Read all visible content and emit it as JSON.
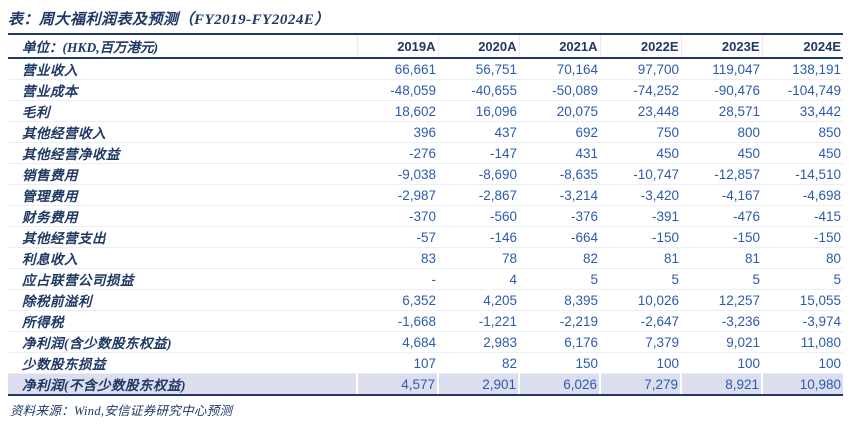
{
  "title": "表：周大福利润表及预测（FY2019-FY2024E）",
  "table": {
    "unit_label": "单位：(HKD,百万港元)",
    "columns": [
      "2019A",
      "2020A",
      "2021A",
      "2022E",
      "2023E",
      "2024E"
    ],
    "rows": [
      {
        "label": "营业收入",
        "values": [
          "66,661",
          "56,751",
          "70,164",
          "97,700",
          "119,047",
          "138,191"
        ],
        "highlight": false
      },
      {
        "label": "营业成本",
        "values": [
          "-48,059",
          "-40,655",
          "-50,089",
          "-74,252",
          "-90,476",
          "-104,749"
        ],
        "highlight": false
      },
      {
        "label": "毛利",
        "values": [
          "18,602",
          "16,096",
          "20,075",
          "23,448",
          "28,571",
          "33,442"
        ],
        "highlight": false
      },
      {
        "label": "其他经营收入",
        "values": [
          "396",
          "437",
          "692",
          "750",
          "800",
          "850"
        ],
        "highlight": false
      },
      {
        "label": "其他经营净收益",
        "values": [
          "-276",
          "-147",
          "431",
          "450",
          "450",
          "450"
        ],
        "highlight": false
      },
      {
        "label": "销售费用",
        "values": [
          "-9,038",
          "-8,690",
          "-8,635",
          "-10,747",
          "-12,857",
          "-14,510"
        ],
        "highlight": false
      },
      {
        "label": "管理费用",
        "values": [
          "-2,987",
          "-2,867",
          "-3,214",
          "-3,420",
          "-4,167",
          "-4,698"
        ],
        "highlight": false
      },
      {
        "label": "财务费用",
        "values": [
          "-370",
          "-560",
          "-376",
          "-391",
          "-476",
          "-415"
        ],
        "highlight": false
      },
      {
        "label": "其他经营支出",
        "values": [
          "-57",
          "-146",
          "-664",
          "-150",
          "-150",
          "-150"
        ],
        "highlight": false
      },
      {
        "label": "利息收入",
        "values": [
          "83",
          "78",
          "82",
          "81",
          "81",
          "80"
        ],
        "highlight": false
      },
      {
        "label": "应占联营公司损益",
        "values": [
          "-",
          "4",
          "5",
          "5",
          "5",
          "5"
        ],
        "highlight": false
      },
      {
        "label": "除税前溢利",
        "values": [
          "6,352",
          "4,205",
          "8,395",
          "10,026",
          "12,257",
          "15,055"
        ],
        "highlight": false
      },
      {
        "label": "所得税",
        "values": [
          "-1,668",
          "-1,221",
          "-2,219",
          "-2,647",
          "-3,236",
          "-3,974"
        ],
        "highlight": false
      },
      {
        "label": "净利润(含少数股东权益)",
        "values": [
          "4,684",
          "2,983",
          "6,176",
          "7,379",
          "9,021",
          "11,080"
        ],
        "highlight": false
      },
      {
        "label": "少数股东损益",
        "values": [
          "107",
          "82",
          "150",
          "100",
          "100",
          "100"
        ],
        "highlight": false
      },
      {
        "label": "净利润(不含少数股东权益)",
        "values": [
          "4,577",
          "2,901",
          "6,026",
          "7,279",
          "8,921",
          "10,980"
        ],
        "highlight": true
      }
    ]
  },
  "source": "资料来源：Wind,安信证券研究中心预测",
  "colors": {
    "navy": "#1F3864",
    "number_blue": "#2B5CAC",
    "highlight_bg": "#DDDDF0"
  }
}
